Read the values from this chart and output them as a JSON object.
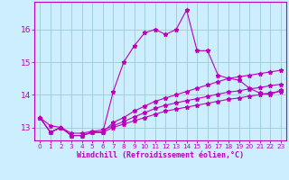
{
  "xlabel": "Windchill (Refroidissement éolien,°C)",
  "x": [
    0,
    1,
    2,
    3,
    4,
    5,
    6,
    7,
    8,
    9,
    10,
    11,
    12,
    13,
    14,
    15,
    16,
    17,
    18,
    19,
    20,
    21,
    22,
    23
  ],
  "line1": [
    13.3,
    12.85,
    13.0,
    12.75,
    12.75,
    12.85,
    12.85,
    14.1,
    15.0,
    15.5,
    15.9,
    16.0,
    15.85,
    16.0,
    16.6,
    15.35,
    15.35,
    14.6,
    14.5,
    14.45,
    14.2,
    14.05,
    14.0,
    14.15
  ],
  "line2": [
    13.3,
    12.85,
    13.0,
    12.75,
    12.75,
    12.85,
    12.85,
    13.15,
    13.3,
    13.5,
    13.65,
    13.8,
    13.9,
    14.0,
    14.1,
    14.2,
    14.3,
    14.4,
    14.5,
    14.55,
    14.6,
    14.65,
    14.7,
    14.75
  ],
  "line3": [
    13.3,
    13.05,
    13.0,
    12.82,
    12.82,
    12.88,
    12.92,
    13.05,
    13.18,
    13.32,
    13.45,
    13.58,
    13.68,
    13.75,
    13.82,
    13.88,
    13.95,
    14.02,
    14.08,
    14.12,
    14.18,
    14.22,
    14.28,
    14.32
  ],
  "line4": [
    13.3,
    12.85,
    13.0,
    12.75,
    12.75,
    12.85,
    12.85,
    13.0,
    13.1,
    13.2,
    13.3,
    13.4,
    13.5,
    13.56,
    13.62,
    13.68,
    13.74,
    13.8,
    13.86,
    13.9,
    13.96,
    14.0,
    14.06,
    14.1
  ],
  "line_color": "#bb00bb",
  "bg_color": "#cceeff",
  "grid_color": "#99cccc",
  "ylim": [
    12.6,
    16.85
  ],
  "yticks": [
    13,
    14,
    15,
    16
  ],
  "xticks": [
    0,
    1,
    2,
    3,
    4,
    5,
    6,
    7,
    8,
    9,
    10,
    11,
    12,
    13,
    14,
    15,
    16,
    17,
    18,
    19,
    20,
    21,
    22,
    23
  ],
  "xlabel_fontsize": 6.0,
  "ytick_fontsize": 6.5,
  "xtick_fontsize": 5.2
}
